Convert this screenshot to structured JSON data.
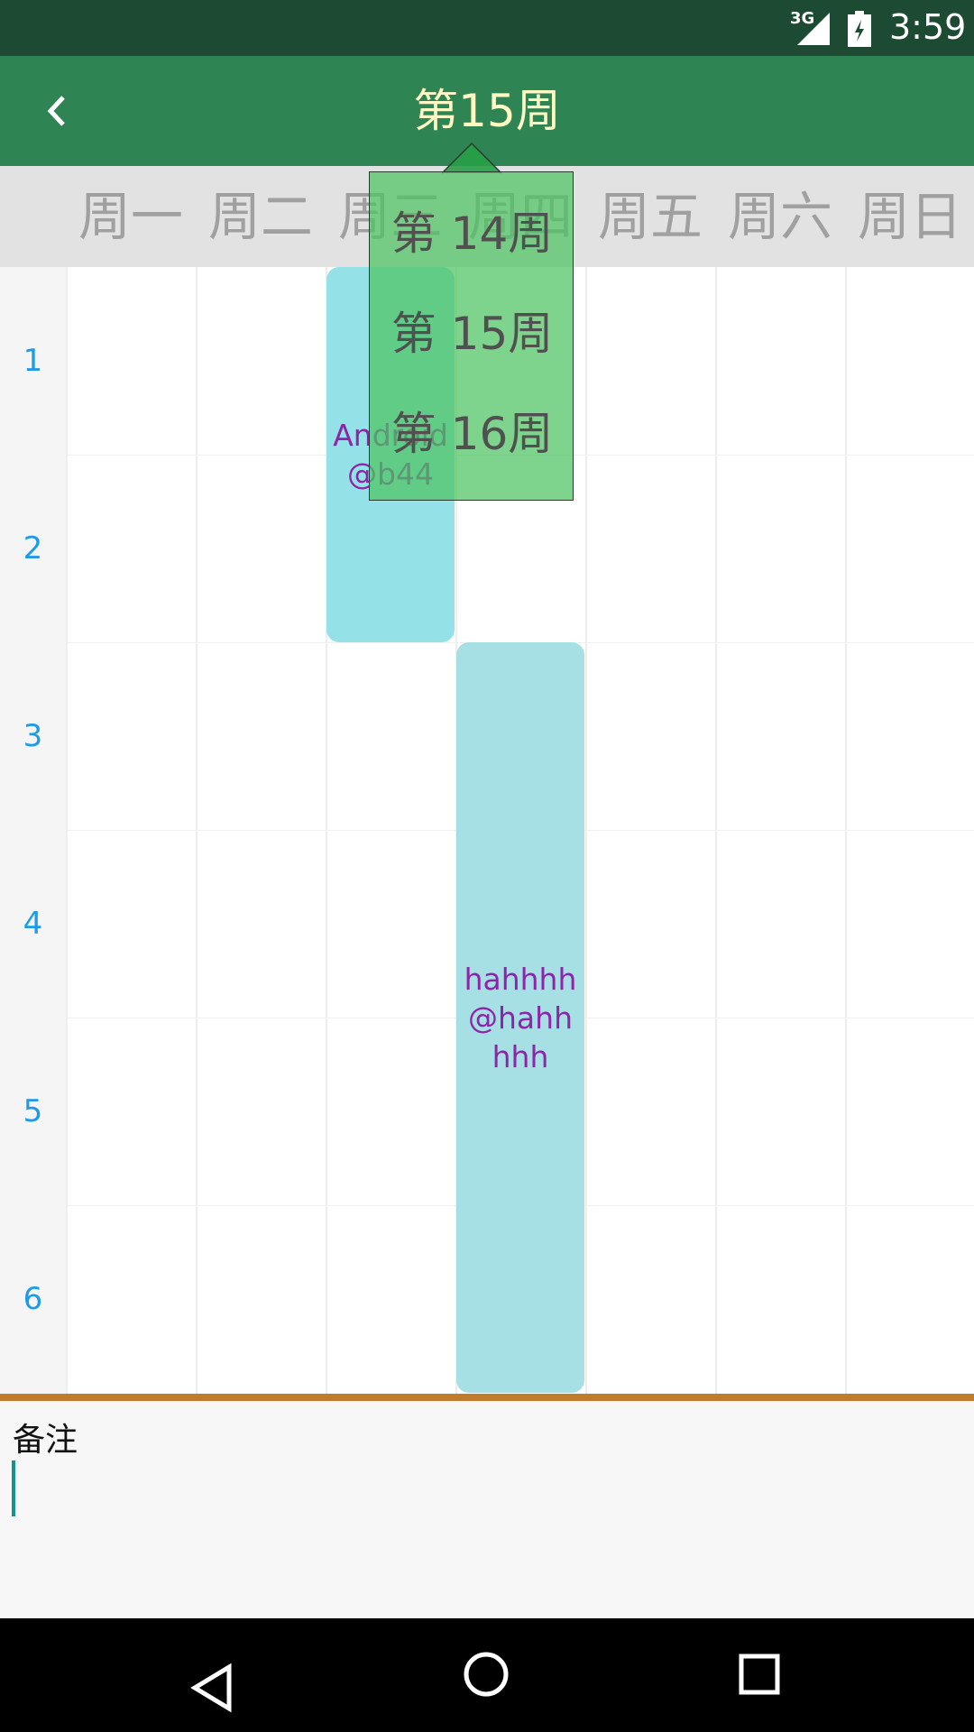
{
  "status_bar": {
    "network": "3G",
    "time": "3:59"
  },
  "toolbar": {
    "title": "第15周"
  },
  "days": [
    "周一",
    "周二",
    "周三",
    "周四",
    "周五",
    "周六",
    "周日"
  ],
  "periods": [
    "1",
    "2",
    "3",
    "4",
    "5",
    "6"
  ],
  "courses": [
    {
      "name": "Android",
      "room": "@b44",
      "day": 3,
      "start": 1,
      "end": 2,
      "color": "#95e1e8"
    },
    {
      "name": "hahhhh",
      "room": "@hahhhhh",
      "day": 4,
      "start": 3,
      "end": 6,
      "color": "#a6e0e4"
    }
  ],
  "week_popup": {
    "items": [
      "第 14周",
      "第 15周",
      "第 16周"
    ]
  },
  "note": {
    "label": "备注"
  }
}
